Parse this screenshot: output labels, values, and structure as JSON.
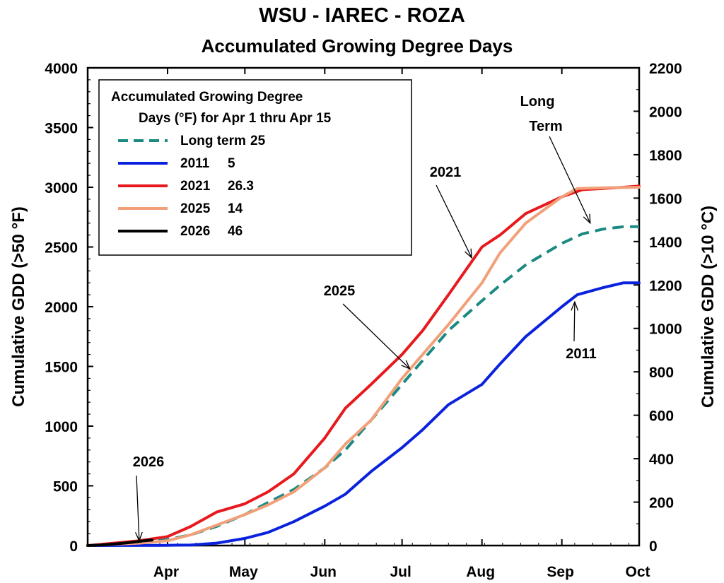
{
  "chart_data": {
    "type": "line",
    "title": "WSU - IAREC - ROZA",
    "subtitle": "Accumulated Growing Degree Days",
    "ylabel_left": "Cumulative GDD (>50 °F)",
    "ylabel_right": "Cumulative GDD (>10 °C)",
    "x_unit": "day of year",
    "xlim": [
      60,
      274
    ],
    "ylim": [
      0,
      4000
    ],
    "ylim_right": [
      0,
      2200
    ],
    "left_ticks": [
      0,
      500,
      1000,
      1500,
      2000,
      2500,
      3000,
      3500,
      4000
    ],
    "right_ticks": [
      0,
      200,
      400,
      600,
      800,
      1000,
      1200,
      1400,
      1600,
      1800,
      2000,
      2200
    ],
    "months": [
      {
        "label": "Apr",
        "day": 91
      },
      {
        "label": "May",
        "day": 121
      },
      {
        "label": "Jun",
        "day": 152
      },
      {
        "label": "Jul",
        "day": 182
      },
      {
        "label": "Aug",
        "day": 213
      },
      {
        "label": "Sep",
        "day": 244
      },
      {
        "label": "Oct",
        "day": 274
      }
    ],
    "legend": {
      "title_line1": "Accumulated Growing Degree",
      "title_line2": "Days (°F) for Apr 1 thru Apr 15",
      "entries": [
        {
          "year": "Long term",
          "value": "25"
        },
        {
          "year": "2011",
          "value": "5"
        },
        {
          "year": "2021",
          "value": "26.3"
        },
        {
          "year": "2025",
          "value": "14"
        },
        {
          "year": "2026",
          "value": "46"
        }
      ]
    },
    "series": [
      {
        "name": "Long term",
        "color": "#1a8a82",
        "dash": true,
        "x": [
          60,
          75,
          85,
          91,
          100,
          110,
          121,
          130,
          140,
          152,
          160,
          170,
          182,
          190,
          200,
          213,
          220,
          230,
          244,
          252,
          260,
          268,
          274
        ],
        "y": [
          0,
          15,
          35,
          50,
          90,
          160,
          260,
          360,
          470,
          650,
          800,
          1050,
          1350,
          1550,
          1800,
          2050,
          2180,
          2350,
          2530,
          2610,
          2650,
          2670,
          2670
        ]
      },
      {
        "name": "2011",
        "color": "#0a22dd",
        "dash": false,
        "x": [
          60,
          90,
          100,
          110,
          121,
          130,
          140,
          152,
          160,
          170,
          182,
          190,
          200,
          213,
          220,
          230,
          244,
          250,
          260,
          268,
          274
        ],
        "y": [
          0,
          2,
          5,
          20,
          60,
          110,
          200,
          330,
          430,
          620,
          820,
          970,
          1180,
          1350,
          1520,
          1750,
          2000,
          2100,
          2160,
          2200,
          2200
        ]
      },
      {
        "name": "2021",
        "color": "#e8191d",
        "dash": false,
        "x": [
          60,
          80,
          91,
          100,
          110,
          121,
          130,
          140,
          152,
          160,
          170,
          182,
          190,
          200,
          213,
          220,
          230,
          244,
          252,
          260,
          268,
          274
        ],
        "y": [
          0,
          40,
          75,
          160,
          280,
          350,
          450,
          600,
          900,
          1150,
          1350,
          1600,
          1800,
          2100,
          2500,
          2600,
          2780,
          2920,
          2980,
          2990,
          3000,
          3010
        ]
      },
      {
        "name": "2025",
        "color": "#f2a07a",
        "dash": false,
        "x": [
          60,
          80,
          91,
          100,
          110,
          121,
          130,
          140,
          152,
          160,
          170,
          182,
          190,
          200,
          213,
          220,
          230,
          244,
          250,
          260,
          268,
          274
        ],
        "y": [
          0,
          20,
          40,
          90,
          170,
          260,
          340,
          450,
          650,
          850,
          1050,
          1400,
          1600,
          1850,
          2200,
          2450,
          2700,
          2920,
          2990,
          2995,
          2998,
          3000
        ]
      },
      {
        "name": "2026",
        "color": "#000000",
        "dash": false,
        "x": [
          60,
          65,
          70,
          75,
          79,
          82,
          85
        ],
        "y": [
          0,
          5,
          12,
          22,
          32,
          40,
          46
        ]
      }
    ],
    "annotations": [
      {
        "label": "2026",
        "target_day": 80,
        "target_gdd": 40
      },
      {
        "label": "2025",
        "target_day": 185,
        "target_gdd": 1480
      },
      {
        "label": "2021",
        "target_day": 209,
        "target_gdd": 2410
      },
      {
        "label": "Long",
        "label2": "Term",
        "target_day": 255,
        "target_gdd": 2700
      },
      {
        "label": "2011",
        "target_day": 249,
        "target_gdd": 2040
      }
    ]
  }
}
